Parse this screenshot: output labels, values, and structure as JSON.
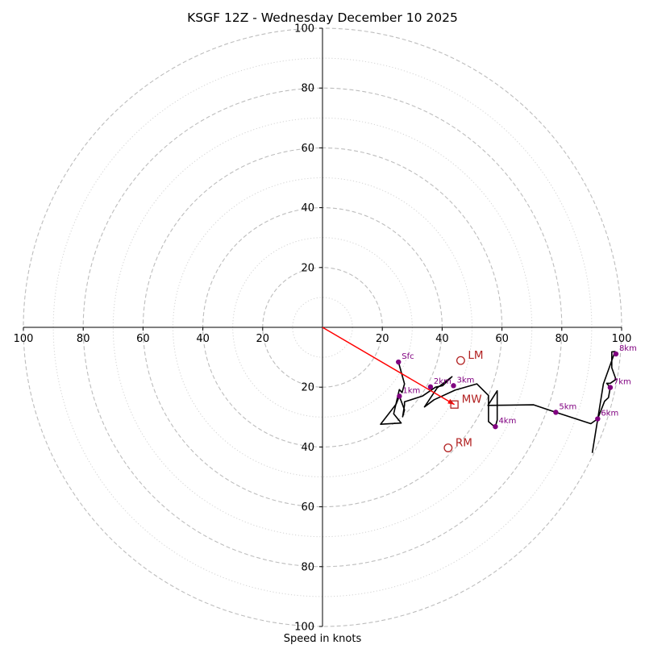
{
  "chart_data": {
    "type": "hodograph",
    "title": "KSGF 12Z - Wednesday December 10 2025",
    "xlabel": "Speed in knots",
    "range": [
      -100,
      100
    ],
    "ring_major": [
      20,
      40,
      60,
      80,
      100
    ],
    "ring_minor": [
      10,
      30,
      50,
      70,
      90
    ],
    "ticks": {
      "x": [
        "100",
        "80",
        "60",
        "40",
        "20",
        "20",
        "40",
        "60",
        "80",
        "100"
      ],
      "x_values": [
        -100,
        -80,
        -60,
        -40,
        -20,
        20,
        40,
        60,
        80,
        100
      ],
      "y": [
        "100",
        "80",
        "60",
        "40",
        "20",
        "20",
        "40",
        "60",
        "80",
        "100"
      ],
      "y_values": [
        100,
        80,
        60,
        40,
        20,
        -20,
        -40,
        -60,
        -80,
        -100
      ]
    },
    "trace": [
      [
        25.4,
        -11.6
      ],
      [
        27.4,
        -18.9
      ],
      [
        26.6,
        -21.8
      ],
      [
        25.7,
        -20.8
      ],
      [
        23.8,
        -28.9
      ],
      [
        26.3,
        -32
      ],
      [
        19.4,
        -32.4
      ],
      [
        24.6,
        -25.7
      ],
      [
        25.7,
        -23
      ],
      [
        27.4,
        -27.6
      ],
      [
        26.8,
        -29.9
      ],
      [
        27.4,
        -26
      ],
      [
        27.4,
        -24.9
      ],
      [
        33.4,
        -23
      ],
      [
        37.8,
        -20
      ],
      [
        40.2,
        -19.5
      ],
      [
        43.3,
        -16.5
      ],
      [
        38.3,
        -20.3
      ],
      [
        34.1,
        -26.6
      ],
      [
        37.3,
        -24.2
      ],
      [
        44.3,
        -21
      ],
      [
        51.6,
        -18.9
      ],
      [
        55.5,
        -22.8
      ],
      [
        55.5,
        -31.5
      ],
      [
        56.9,
        -32.7
      ],
      [
        57.8,
        -33.2
      ],
      [
        58.4,
        -31
      ],
      [
        58.4,
        -21.2
      ],
      [
        55.3,
        -26.1
      ],
      [
        70.6,
        -25.9
      ],
      [
        78,
        -28.4
      ],
      [
        89.7,
        -32.2
      ],
      [
        92,
        -30.6
      ],
      [
        94.3,
        -24.7
      ],
      [
        95.6,
        -23.5
      ],
      [
        96.2,
        -20.1
      ],
      [
        95,
        -18.7
      ],
      [
        96.2,
        -18.7
      ],
      [
        98.1,
        -17.4
      ],
      [
        96.7,
        -13.5
      ],
      [
        96.7,
        -8.2
      ],
      [
        97.8,
        -8.1
      ],
      [
        93.9,
        -18.9
      ],
      [
        90.2,
        -42
      ]
    ],
    "height_markers": [
      {
        "label": "Sfc",
        "u": 25.4,
        "v": -11.6
      },
      {
        "label": "1km",
        "u": 25.7,
        "v": -23
      },
      {
        "label": "2km",
        "u": 36.1,
        "v": -19.9
      },
      {
        "label": "3km",
        "u": 43.8,
        "v": -19.5
      },
      {
        "label": "4km",
        "u": 57.8,
        "v": -33.2
      },
      {
        "label": "5km",
        "u": 78,
        "v": -28.4
      },
      {
        "label": "6km",
        "u": 92,
        "v": -30.6
      },
      {
        "label": "7km",
        "u": 96.2,
        "v": -20.1
      },
      {
        "label": "8km",
        "u": 98.1,
        "v": -8.9
      }
    ],
    "motion_markers": [
      {
        "label": "LM",
        "u": 46.2,
        "v": -11.1,
        "shape": "circle"
      },
      {
        "label": "MW",
        "u": 44.1,
        "v": -25.8,
        "shape": "square"
      },
      {
        "label": "RM",
        "u": 42,
        "v": -40.3,
        "shape": "circle"
      }
    ],
    "shear_vector": {
      "from": [
        0,
        0
      ],
      "to": [
        44.1,
        -25.8
      ]
    },
    "colors": {
      "trace": "#000000",
      "height_marker": "#800080",
      "motion": "#b22222",
      "shear_vector": "#ff0000",
      "ring_major": "#bdbdbd",
      "ring_minor": "#d3d3d3",
      "axis": "#000000"
    }
  }
}
